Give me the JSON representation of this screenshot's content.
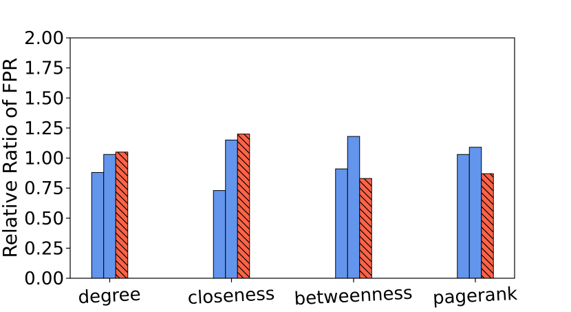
{
  "chart_data": {
    "type": "bar",
    "title": "",
    "xlabel": "",
    "ylabel": "Relative Ratio of FPR",
    "ylim": [
      0,
      2.0
    ],
    "yticks": [
      "0.00",
      "0.25",
      "0.50",
      "0.75",
      "1.00",
      "1.25",
      "1.50",
      "1.75",
      "2.00"
    ],
    "grid": false,
    "categories": [
      "degree",
      "closeness",
      "betweenness",
      "pagerank"
    ],
    "series": [
      {
        "name": "series-1",
        "color": "#6495ED",
        "hatch": false,
        "values": [
          0.88,
          0.73,
          0.91,
          1.03
        ]
      },
      {
        "name": "series-2",
        "color": "#6495ED",
        "hatch": false,
        "values": [
          1.03,
          1.15,
          1.18,
          1.09
        ]
      },
      {
        "name": "series-3",
        "color": "#FF6347",
        "hatch": true,
        "values": [
          1.05,
          1.2,
          0.83,
          0.87
        ]
      }
    ]
  }
}
